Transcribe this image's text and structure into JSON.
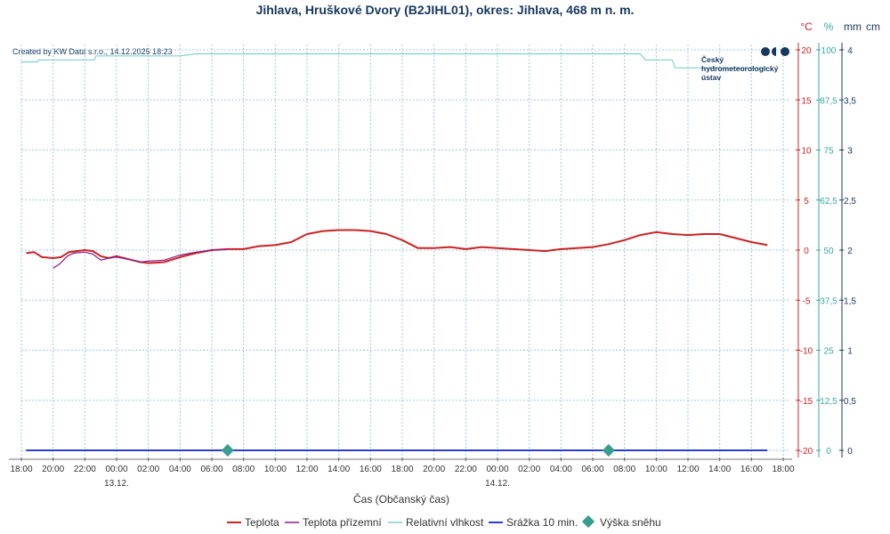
{
  "chart_data": {
    "type": "line",
    "title": "Jihlava, Hruškové Dvory (B2JIHL01), okres: Jihlava, 468 m n. m.",
    "credit": "Created by KW Data s.r.o., 14.12.2025 18:23",
    "logo_lines": [
      "Český",
      "hydrometeorologický",
      "ústav"
    ],
    "xlabel": "Čas (Občanský čas)",
    "x_ticks": [
      "18:00",
      "20:00",
      "22:00",
      "00:00",
      "02:00",
      "04:00",
      "06:00",
      "08:00",
      "10:00",
      "12:00",
      "14:00",
      "16:00",
      "18:00",
      "20:00",
      "22:00",
      "00:00",
      "02:00",
      "04:00",
      "06:00",
      "08:00",
      "10:00",
      "12:00",
      "14:00",
      "16:00",
      "18:00"
    ],
    "x_range_hours": [
      0,
      48
    ],
    "date_labels": [
      {
        "hour": 6,
        "text": "13.12."
      },
      {
        "hour": 30,
        "text": "14.12."
      }
    ],
    "axes": {
      "temperature": {
        "unit": "°C",
        "ylim": [
          -20,
          20
        ],
        "ticks": [
          "20",
          "15",
          "10",
          "5",
          "0",
          "-5",
          "-10",
          "-15",
          "-20"
        ],
        "color": "#cc2222"
      },
      "humidity": {
        "unit": "%",
        "ylim": [
          0,
          100
        ],
        "ticks": [
          "100",
          "87,5",
          "75",
          "62,5",
          "50",
          "37,5",
          "25",
          "12,5",
          "0"
        ],
        "color": "#3aa6a6"
      },
      "precip": {
        "unit": "mm",
        "color": "#17375e"
      },
      "snow": {
        "unit": "cm",
        "ylim": [
          0,
          4
        ],
        "ticks": [
          "4",
          "3,5",
          "3",
          "2,5",
          "2",
          "1,5",
          "1",
          "0,5",
          "0"
        ],
        "color": "#17375e"
      }
    },
    "grid": true,
    "legend_position": "bottom",
    "series": [
      {
        "name": "Teplota",
        "axis": "temperature",
        "color": "#cc2222",
        "points": [
          [
            0.3,
            -0.3
          ],
          [
            0.8,
            -0.2
          ],
          [
            1.3,
            -0.7
          ],
          [
            2,
            -0.8
          ],
          [
            2.5,
            -0.7
          ],
          [
            3,
            -0.2
          ],
          [
            4,
            0
          ],
          [
            4.5,
            -0.1
          ],
          [
            5,
            -0.6
          ],
          [
            5.5,
            -0.8
          ],
          [
            6,
            -0.6
          ],
          [
            7,
            -1.0
          ],
          [
            7.5,
            -1.2
          ],
          [
            8,
            -1.3
          ],
          [
            9,
            -1.2
          ],
          [
            10,
            -0.7
          ],
          [
            11,
            -0.3
          ],
          [
            12,
            0
          ],
          [
            13,
            0.1
          ],
          [
            14,
            0.1
          ],
          [
            15,
            0.4
          ],
          [
            16,
            0.5
          ],
          [
            17,
            0.8
          ],
          [
            18,
            1.6
          ],
          [
            19,
            1.9
          ],
          [
            20,
            2.0
          ],
          [
            21,
            2.0
          ],
          [
            22,
            1.9
          ],
          [
            23,
            1.6
          ],
          [
            24,
            1.0
          ],
          [
            25,
            0.2
          ],
          [
            26,
            0.2
          ],
          [
            27,
            0.3
          ],
          [
            28,
            0.1
          ],
          [
            29,
            0.3
          ],
          [
            30,
            0.2
          ],
          [
            31,
            0.1
          ],
          [
            32,
            0.0
          ],
          [
            33,
            -0.1
          ],
          [
            34,
            0.1
          ],
          [
            35,
            0.2
          ],
          [
            36,
            0.3
          ],
          [
            37,
            0.6
          ],
          [
            38,
            1.0
          ],
          [
            39,
            1.5
          ],
          [
            40,
            1.8
          ],
          [
            41,
            1.6
          ],
          [
            42,
            1.5
          ],
          [
            43,
            1.6
          ],
          [
            44,
            1.6
          ],
          [
            45,
            1.2
          ],
          [
            46,
            0.8
          ],
          [
            47,
            0.5
          ]
        ]
      },
      {
        "name": "Teplota přízemní",
        "axis": "temperature",
        "color": "#8b1a8b",
        "points": [
          [
            2,
            -1.8
          ],
          [
            2.4,
            -1.4
          ],
          [
            2.9,
            -0.6
          ],
          [
            3.3,
            -0.3
          ],
          [
            4,
            -0.2
          ],
          [
            4.5,
            -0.4
          ],
          [
            5,
            -1.0
          ],
          [
            5.5,
            -0.8
          ],
          [
            6,
            -0.7
          ],
          [
            7,
            -1.0
          ],
          [
            7.5,
            -1.2
          ],
          [
            8,
            -1.1
          ],
          [
            9,
            -1.0
          ],
          [
            10,
            -0.5
          ],
          [
            11,
            -0.2
          ],
          [
            12,
            0.0
          ],
          [
            13,
            0.1
          ]
        ]
      },
      {
        "name": "Relativní vlhkost",
        "axis": "humidity",
        "color": "#7fcfcf",
        "points": [
          [
            0,
            97
          ],
          [
            1,
            97
          ],
          [
            1.1,
            97.5
          ],
          [
            4.6,
            97.5
          ],
          [
            4.7,
            98.5
          ],
          [
            10,
            98.5
          ],
          [
            11,
            99
          ],
          [
            39,
            99
          ],
          [
            39.3,
            97.5
          ],
          [
            41,
            97.5
          ],
          [
            41.2,
            95.5
          ],
          [
            47,
            95.5
          ]
        ]
      },
      {
        "name": "Srážka 10 min.",
        "axis": "precip",
        "color": "#2c3ecc",
        "points": [
          [
            0.3,
            0
          ],
          [
            47,
            0
          ]
        ]
      },
      {
        "name": "Výška sněhu",
        "axis": "snow",
        "color": "#3a9e8f",
        "markers": [
          [
            13,
            0
          ],
          [
            37,
            0
          ]
        ]
      }
    ]
  }
}
